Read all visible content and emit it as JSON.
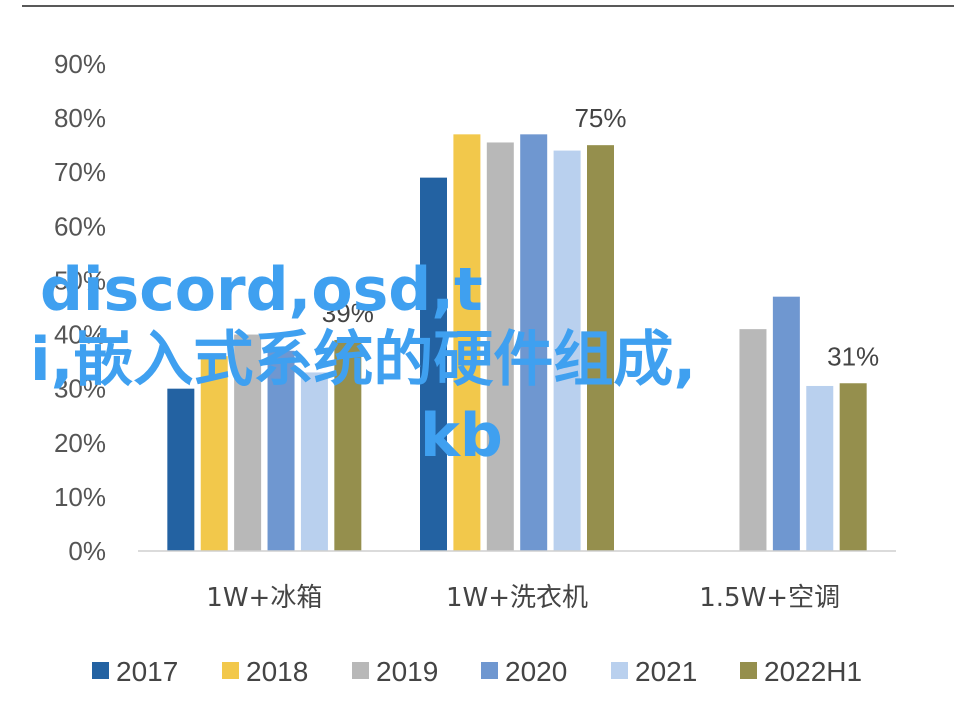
{
  "chart_data": {
    "type": "bar",
    "categories": [
      "1W+冰箱",
      "1W+洗衣机",
      "1.5W+空调"
    ],
    "series": [
      {
        "name": "2017",
        "color": "#2362a2",
        "values": [
          30,
          69,
          null
        ]
      },
      {
        "name": "2018",
        "color": "#f2c84b",
        "values": [
          36,
          77,
          null
        ]
      },
      {
        "name": "2019",
        "color": "#b8b8b8",
        "values": [
          40,
          75.5,
          41
        ]
      },
      {
        "name": "2020",
        "color": "#6f97d0",
        "values": [
          37,
          77,
          47
        ]
      },
      {
        "name": "2021",
        "color": "#b9d0ee",
        "values": [
          33,
          74,
          30.5
        ]
      },
      {
        "name": "2022H1",
        "color": "#958f4d",
        "values": [
          39,
          75,
          31
        ]
      }
    ],
    "data_labels": [
      {
        "category": "1W+洗衣机",
        "series": "2022H1",
        "text": "75%"
      },
      {
        "category": "1W+冰箱",
        "series": "2022H1",
        "text": "39%"
      },
      {
        "category": "1.5W+空调",
        "series": "2022H1",
        "text": "31%"
      }
    ],
    "yticks": [
      "0%",
      "10%",
      "20%",
      "30%",
      "40%",
      "50%",
      "60%",
      "70%",
      "80%",
      "90%"
    ],
    "ylim": [
      0,
      90
    ],
    "grid": false,
    "legend_position": "bottom"
  },
  "overlay_text": {
    "line1": "discord,osd,t",
    "line2": "i,嵌入式系统的硬件组成,",
    "line3": "kb"
  }
}
